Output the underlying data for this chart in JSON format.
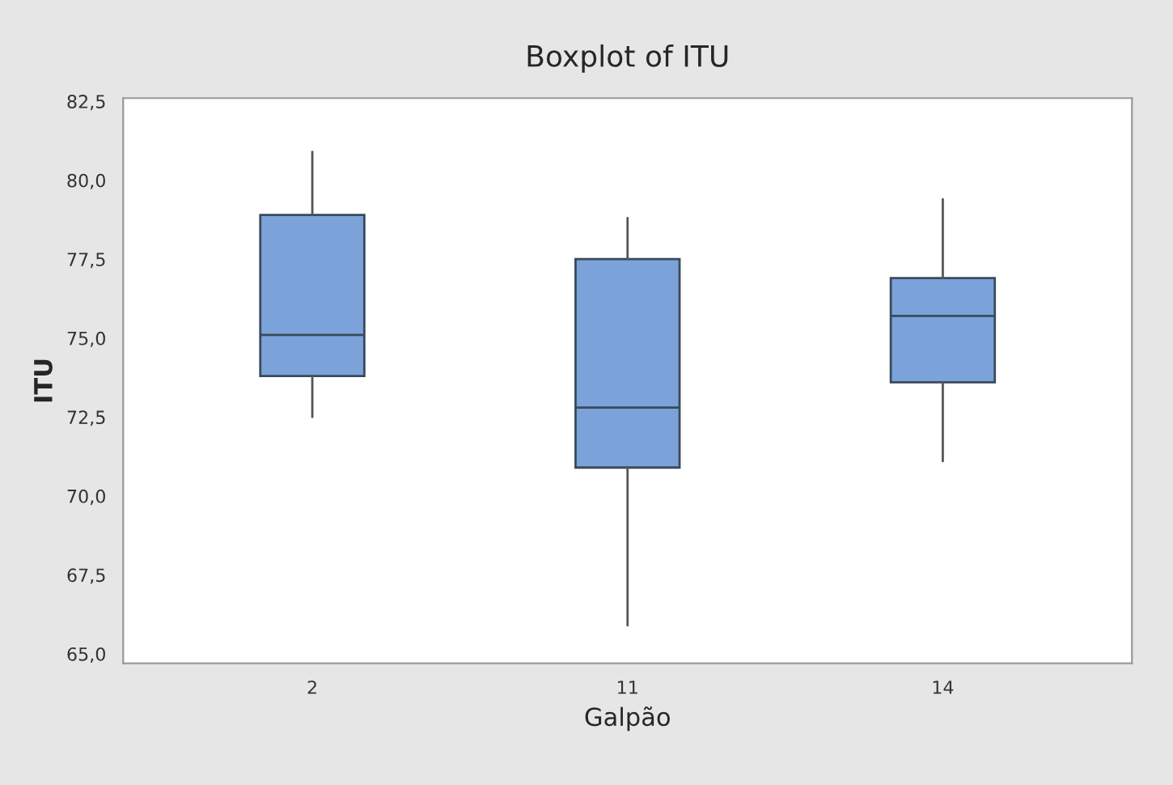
{
  "chart_data": {
    "type": "box",
    "title": "Boxplot of ITU",
    "xlabel": "Galpão",
    "ylabel": "ITU",
    "categories": [
      "2",
      "11",
      "14"
    ],
    "boxes": [
      {
        "low": 72.5,
        "q1": 73.8,
        "median": 75.1,
        "q3": 78.9,
        "high": 80.9
      },
      {
        "low": 65.9,
        "q1": 70.9,
        "median": 72.8,
        "q3": 77.5,
        "high": 78.8
      },
      {
        "low": 71.1,
        "q1": 73.6,
        "median": 75.7,
        "q3": 76.9,
        "high": 79.4
      }
    ],
    "color": "#7ba3d9",
    "ylim": [
      64.7,
      82.6
    ],
    "yticks": [
      {
        "value": 65.0,
        "label": "65,0"
      },
      {
        "value": 67.5,
        "label": "67,5"
      },
      {
        "value": 70.0,
        "label": "70,0"
      },
      {
        "value": 72.5,
        "label": "72,5"
      },
      {
        "value": 75.0,
        "label": "75,0"
      },
      {
        "value": 77.5,
        "label": "77,5"
      },
      {
        "value": 80.0,
        "label": "80,0"
      },
      {
        "value": 82.5,
        "label": "82,5"
      }
    ],
    "grid": false,
    "legend": false
  }
}
